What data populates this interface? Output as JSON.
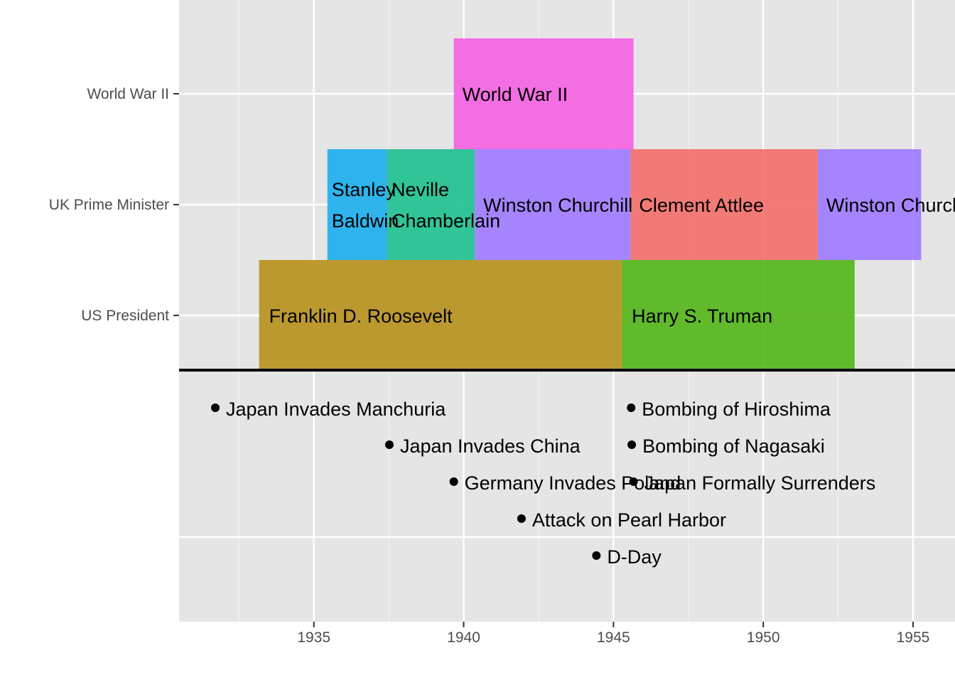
{
  "chart_data": {
    "type": "timeline",
    "title": "",
    "xlabel": "",
    "ylabel": "",
    "xlim": [
      1930.5,
      1956.4
    ],
    "x_ticks": [
      1935,
      1940,
      1945,
      1950,
      1955
    ],
    "grid": true,
    "categories": [
      "World War II",
      "UK Prime Minister",
      "US President"
    ],
    "periods": [
      {
        "category": "World War II",
        "label": "World War II",
        "start": 1939.67,
        "end": 1945.67,
        "color": "#F564E3"
      },
      {
        "category": "UK Prime Minister",
        "label": "Stanley Baldwin",
        "start": 1935.45,
        "end": 1937.45,
        "color": "#1FAFED"
      },
      {
        "category": "UK Prime Minister",
        "label": "Neville Chamberlain",
        "start": 1937.45,
        "end": 1940.37,
        "color": "#22C192"
      },
      {
        "category": "UK Prime Minister",
        "label": "Winston Churchill",
        "start": 1940.37,
        "end": 1945.57,
        "color": "#A07CFF"
      },
      {
        "category": "UK Prime Minister",
        "label": "Clement Attlee",
        "start": 1945.57,
        "end": 1951.82,
        "color": "#F2716D"
      },
      {
        "category": "UK Prime Minister",
        "label": "Winston Churchill",
        "start": 1951.82,
        "end": 1955.27,
        "color": "#A07CFF"
      },
      {
        "category": "US President",
        "label": "Franklin D. Roosevelt",
        "start": 1933.17,
        "end": 1945.28,
        "color": "#B99320"
      },
      {
        "category": "US President",
        "label": "Harry S. Truman",
        "start": 1945.28,
        "end": 1953.05,
        "color": "#56B51C"
      }
    ],
    "events": [
      {
        "label": "Japan Invades Manchuria",
        "date": 1931.71,
        "row": 1
      },
      {
        "label": "Japan Invades China",
        "date": 1937.52,
        "row": 2
      },
      {
        "label": "Germany Invades Poland",
        "date": 1939.67,
        "row": 3
      },
      {
        "label": "Attack on Pearl Harbor",
        "date": 1941.93,
        "row": 4
      },
      {
        "label": "D-Day",
        "date": 1944.43,
        "row": 5
      },
      {
        "label": "Bombing of Hiroshima",
        "date": 1945.59,
        "row": 1
      },
      {
        "label": "Bombing of Nagasaki",
        "date": 1945.61,
        "row": 2
      },
      {
        "label": "Japan Formally Surrenders",
        "date": 1945.67,
        "row": 3
      }
    ]
  }
}
